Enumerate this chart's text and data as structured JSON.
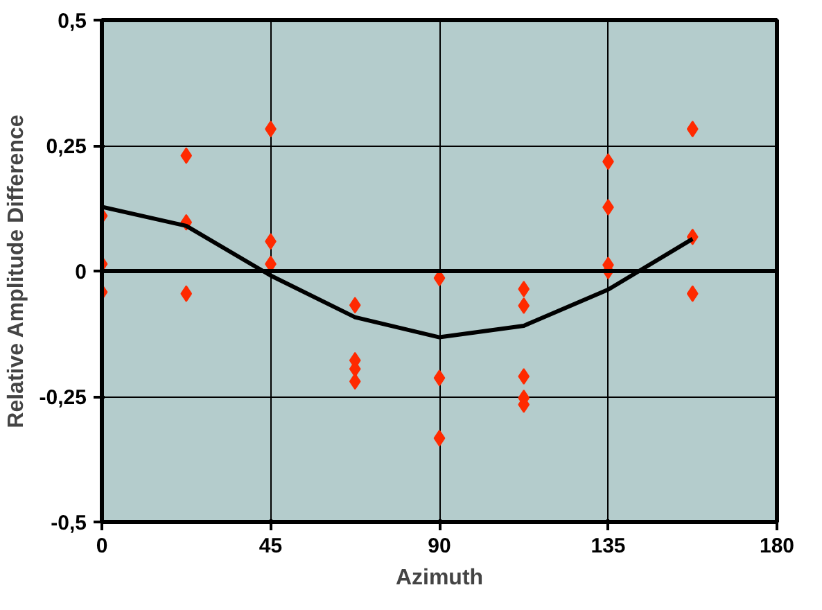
{
  "chart_data": {
    "type": "scatter",
    "xlabel": "Azimuth",
    "ylabel": "Relative Amplitude Difference",
    "series": [
      {
        "color": "#ff2a00",
        "marker": "diamond",
        "x": [
          0,
          0,
          0,
          22.5,
          22.5,
          22.5,
          45,
          45,
          45,
          67.5,
          67.5,
          67.5,
          67.5,
          90,
          90,
          90,
          112.5,
          112.5,
          112.5,
          112.5,
          112.5,
          135,
          135,
          135,
          135,
          157.5,
          157.5,
          157.5
        ],
        "values": [
          0.11,
          0.014,
          -0.042,
          0.23,
          0.097,
          -0.045,
          0.283,
          0.059,
          0.014,
          -0.068,
          -0.178,
          -0.195,
          -0.22,
          -0.014,
          -0.213,
          -0.333,
          -0.036,
          -0.069,
          -0.21,
          -0.253,
          -0.266,
          0.218,
          0.127,
          0.012,
          0.0,
          0.283,
          0.068,
          -0.045
        ]
      },
      {
        "type": "line",
        "color": "#000000",
        "marker": "none",
        "x": [
          0,
          22.5,
          45,
          67.5,
          90,
          112.5,
          135,
          157.5
        ],
        "values": [
          0.128,
          0.09,
          -0.009,
          -0.092,
          -0.132,
          -0.109,
          -0.037,
          0.064
        ]
      }
    ],
    "xlim": [
      0,
      180
    ],
    "xticks": [
      0,
      45,
      90,
      135,
      180
    ],
    "ylim": [
      -0.5,
      0.5
    ],
    "yticks": [
      {
        "value": -0.5,
        "label": "-0,5"
      },
      {
        "value": -0.25,
        "label": "-0,25"
      },
      0,
      {
        "value": 0.25,
        "label": "0,25"
      },
      {
        "value": 0.5,
        "label": "0,5"
      }
    ],
    "ref_lines": [
      {
        "axis": "y",
        "value": 0
      }
    ],
    "grid": true
  }
}
